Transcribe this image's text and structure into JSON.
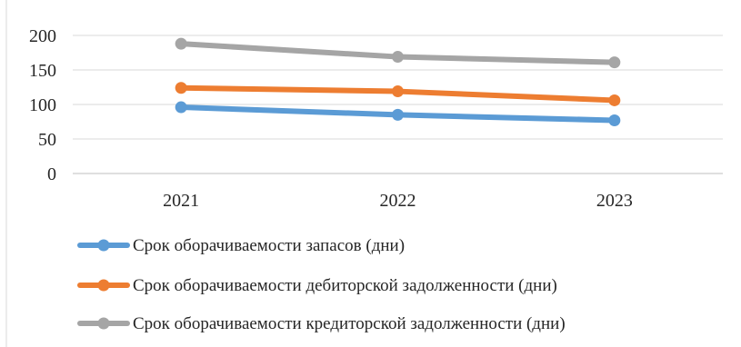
{
  "chart_data": {
    "type": "line",
    "title": "",
    "xlabel": "",
    "ylabel": "",
    "categories": [
      "2021",
      "2022",
      "2023"
    ],
    "ylim": [
      0,
      200
    ],
    "yticks": [
      0,
      50,
      100,
      150,
      200
    ],
    "grid": true,
    "legend_position": "bottom",
    "series": [
      {
        "name": "Срок оборачиваемости запасов (дни)",
        "color": "#5B9BD5",
        "values": [
          96,
          85,
          77
        ]
      },
      {
        "name": "Срок оборачиваемости дебиторской задолженности (дни)",
        "color": "#ED7D31",
        "values": [
          124,
          119,
          106
        ]
      },
      {
        "name": "Срок оборачиваемости кредиторской задолженности (дни)",
        "color": "#A5A5A5",
        "values": [
          188,
          169,
          161
        ]
      }
    ]
  }
}
